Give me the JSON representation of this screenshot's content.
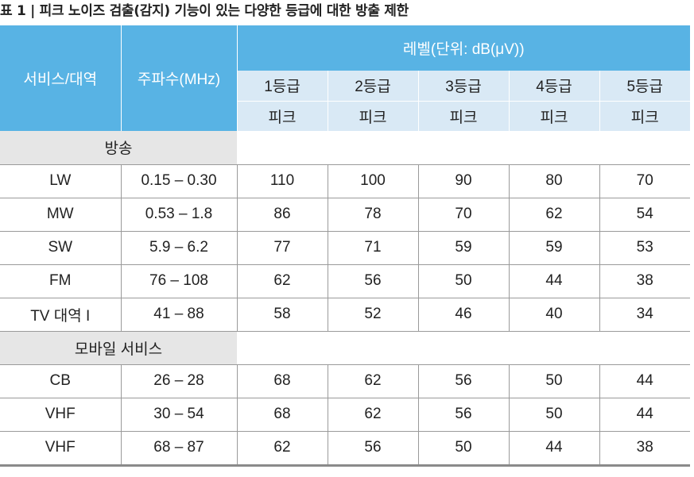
{
  "caption": "표 1 | 피크 노이즈 검출(감지) 기능이 있는 다양한 등급에 대한 방출 제한",
  "header": {
    "service": "서비스/대역",
    "frequency": "주파수(MHz)",
    "level": "레벨(단위: dB(μV))",
    "grades": [
      "1등급",
      "2등급",
      "3등급",
      "4등급",
      "5등급"
    ],
    "peak": "피크"
  },
  "sections": [
    {
      "title": "방송",
      "rows": [
        {
          "service": "LW",
          "freq": "0.15 – 0.30",
          "values": [
            "110",
            "100",
            "90",
            "80",
            "70"
          ]
        },
        {
          "service": "MW",
          "freq": "0.53 – 1.8",
          "values": [
            "86",
            "78",
            "70",
            "62",
            "54"
          ]
        },
        {
          "service": "SW",
          "freq": "5.9 – 6.2",
          "values": [
            "77",
            "71",
            "59",
            "59",
            "53"
          ]
        },
        {
          "service": "FM",
          "freq": "76 – 108",
          "values": [
            "62",
            "56",
            "50",
            "44",
            "38"
          ]
        },
        {
          "service": "TV 대역 I",
          "freq": "41 – 88",
          "values": [
            "58",
            "52",
            "46",
            "40",
            "34"
          ]
        }
      ]
    },
    {
      "title": "모바일 서비스",
      "rows": [
        {
          "service": "CB",
          "freq": "26 – 28",
          "values": [
            "68",
            "62",
            "56",
            "50",
            "44"
          ]
        },
        {
          "service": "VHF",
          "freq": "30 – 54",
          "values": [
            "68",
            "62",
            "56",
            "50",
            "44"
          ]
        },
        {
          "service": "VHF",
          "freq": "68 – 87",
          "values": [
            "62",
            "56",
            "50",
            "44",
            "38"
          ]
        }
      ]
    }
  ]
}
